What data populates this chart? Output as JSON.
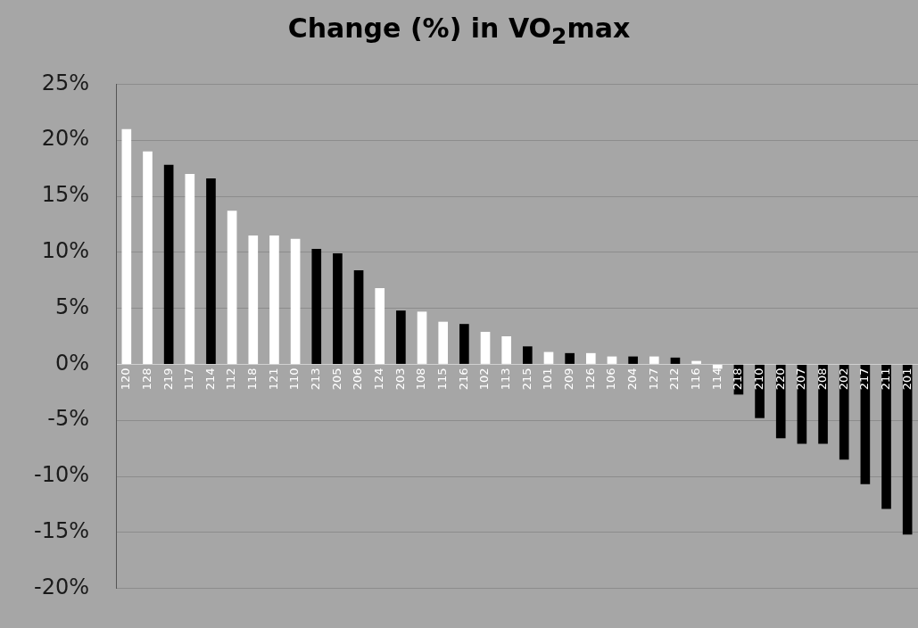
{
  "chart_data": {
    "type": "bar",
    "title": "Change (%) in VO$_{2}$max",
    "categories": [
      "120",
      "128",
      "219",
      "117",
      "214",
      "112",
      "118",
      "121",
      "110",
      "213",
      "205",
      "206",
      "124",
      "203",
      "108",
      "115",
      "216",
      "102",
      "113",
      "215",
      "101",
      "209",
      "126",
      "106",
      "204",
      "127",
      "212",
      "116",
      "114",
      "218",
      "210",
      "220",
      "207",
      "208",
      "202",
      "217",
      "211",
      "201"
    ],
    "values": [
      21.0,
      19.0,
      17.8,
      17.0,
      16.6,
      13.7,
      11.5,
      11.5,
      11.2,
      10.3,
      9.9,
      8.4,
      6.8,
      4.8,
      4.7,
      3.8,
      3.6,
      2.9,
      2.5,
      1.6,
      1.1,
      1.0,
      1.0,
      0.7,
      0.7,
      0.7,
      0.6,
      0.3,
      -0.4,
      -2.7,
      -4.8,
      -6.6,
      -7.1,
      -7.1,
      -8.5,
      -10.7,
      -12.9,
      -15.2
    ],
    "colors": [
      "#ffffff",
      "#ffffff",
      "#000000",
      "#ffffff",
      "#000000",
      "#ffffff",
      "#ffffff",
      "#ffffff",
      "#ffffff",
      "#000000",
      "#000000",
      "#000000",
      "#ffffff",
      "#000000",
      "#ffffff",
      "#ffffff",
      "#000000",
      "#ffffff",
      "#ffffff",
      "#000000",
      "#ffffff",
      "#000000",
      "#ffffff",
      "#ffffff",
      "#000000",
      "#ffffff",
      "#000000",
      "#ffffff",
      "#ffffff",
      "#000000",
      "#000000",
      "#000000",
      "#000000",
      "#000000",
      "#000000",
      "#000000",
      "#000000",
      "#000000"
    ],
    "ylim": [
      -20,
      25
    ],
    "yticks": [
      {
        "value": -20,
        "label": "-20%"
      },
      {
        "value": -15,
        "label": "-15%"
      },
      {
        "value": -10,
        "label": "-10%"
      },
      {
        "value": -5,
        "label": "-5%"
      },
      {
        "value": 0,
        "label": "0%"
      },
      {
        "value": 5,
        "label": "5%"
      },
      {
        "value": 10,
        "label": "10%"
      },
      {
        "value": 15,
        "label": "15%"
      },
      {
        "value": 20,
        "label": "20%"
      },
      {
        "value": 25,
        "label": "25%"
      }
    ],
    "grid": "y",
    "legend": false
  }
}
